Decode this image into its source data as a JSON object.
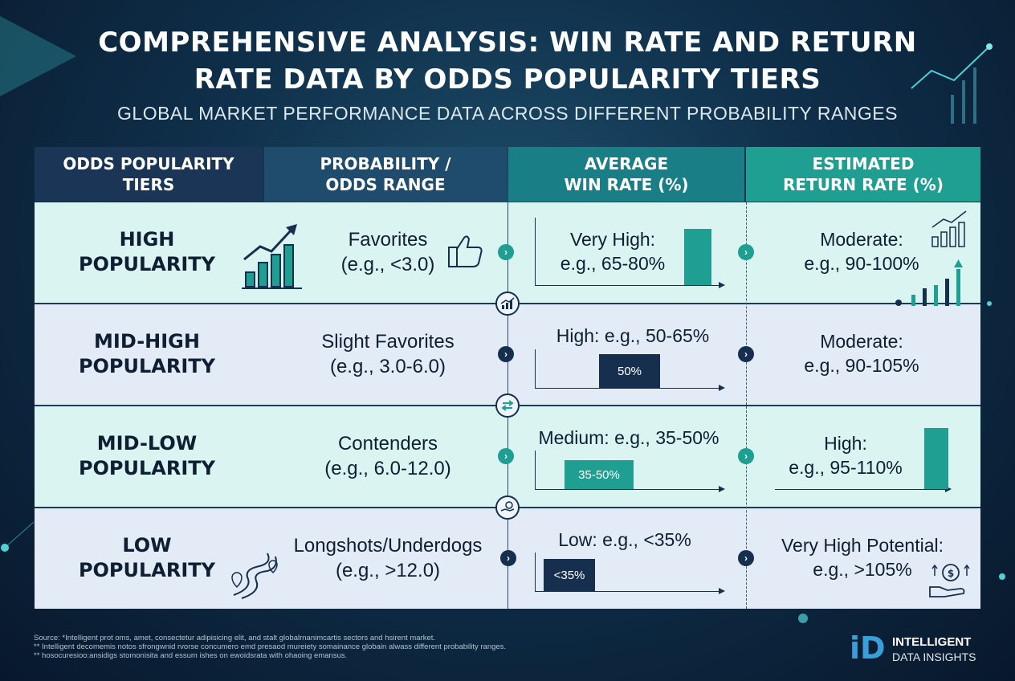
{
  "title_line1": "COMPREHENSIVE ANALYSIS: WIN RATE AND RETURN",
  "title_line2": "RATE DATA BY ODDS POPULARITY TIERS",
  "subtitle": "GLOBAL MARKET PERFORMANCE DATA ACROSS DIFFERENT PROBABILITY RANGES",
  "headers": [
    {
      "l1": "ODDS POPULARITY",
      "l2": "TIERS"
    },
    {
      "l1": "PROBABILITY /",
      "l2": "ODDS RANGE"
    },
    {
      "l1": "AVERAGE",
      "l2": "WIN RATE (%)"
    },
    {
      "l1": "ESTIMATED",
      "l2": "RETURN RATE (%)"
    }
  ],
  "rows": [
    {
      "tier_l1": "HIGH",
      "tier_l2": "POPULARITY",
      "prob_l1": "Favorites",
      "prob_l2": "(e.g., <3.0)",
      "win_l1": "Very High:",
      "win_l2": "e.g., 65-80%",
      "bar_label": "",
      "ret_l1": "Moderate:",
      "ret_l2": "e.g., 90-100%"
    },
    {
      "tier_l1": "MID-HIGH",
      "tier_l2": "POPULARITY",
      "prob_l1": "Slight Favorites",
      "prob_l2": "(e.g., 3.0-6.0)",
      "win_l1": "High: e.g., 50-65%",
      "win_l2": "",
      "bar_label": "50%",
      "ret_l1": "Moderate:",
      "ret_l2": "e.g., 90-105%"
    },
    {
      "tier_l1": "MID-LOW",
      "tier_l2": "POPULARITY",
      "prob_l1": "Contenders",
      "prob_l2": "(e.g., 6.0-12.0)",
      "win_l1": "Medium: e.g., 35-50%",
      "win_l2": "",
      "bar_label": "35-50%",
      "ret_l1": "High:",
      "ret_l2": "e.g., 95-110%"
    },
    {
      "tier_l1": "LOW",
      "tier_l2": "POPULARITY",
      "prob_l1": "Longshots/Underdogs",
      "prob_l2": "(e.g., >12.0)",
      "win_l1": "Low: e.g., <35%",
      "win_l2": "",
      "bar_label": "<35%",
      "ret_l1": "Very High Potential:",
      "ret_l2": "e.g., >105%"
    }
  ],
  "footer": [
    "Source: *Intelligent prot oms, amet, consectetur adipisicing elit, and stalt global​rnanimcartis sectors and hsirent market.",
    "** Intelligent decomemis notos sfrongwnid rvorse concumero emd presaod mureiety somainance globain alwass different probability ranges.",
    "** hosocuresioo:ansidigs stomonisita and essum ishes on ewoidsrata with ohaoing emansus."
  ],
  "logo": {
    "mark": "iD",
    "line1": "INTELLIGENT",
    "line2": "DATA INSIGHTS"
  },
  "colors": {
    "teal": "#1f9e92",
    "navy": "#172f4f",
    "header_navy": "#1b3556",
    "header_teal": "#1f9e92"
  }
}
